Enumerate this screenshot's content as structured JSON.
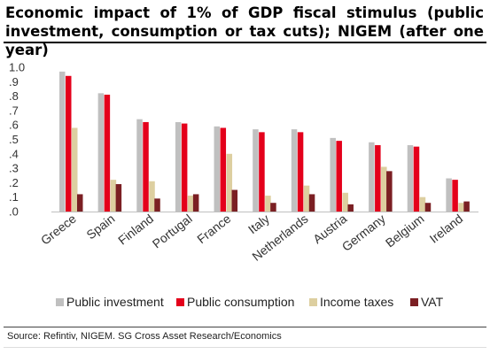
{
  "title": "Economic impact of 1% of GDP fiscal stimulus (public investment, consumption or tax cuts); NIGEM (after one year)",
  "source": "Source: Refintiv, NIGEM. SG Cross Asset Research/Economics",
  "colors": {
    "public_investment": "#c0c0c0",
    "public_consumption": "#e4001b",
    "income_taxes": "#ddcfa0",
    "vat": "#7b1f23"
  },
  "chart_data": {
    "type": "bar",
    "categories": [
      "Greece",
      "Spain",
      "Finland",
      "Portugal",
      "France",
      "Italy",
      "Netherlands",
      "Austria",
      "Germany",
      "Belgium",
      "Ireland"
    ],
    "series": [
      {
        "name": "Public investment",
        "color": "#c0c0c0",
        "values": [
          0.97,
          0.82,
          0.64,
          0.62,
          0.59,
          0.57,
          0.57,
          0.51,
          0.48,
          0.46,
          0.23
        ]
      },
      {
        "name": "Public consumption",
        "color": "#e4001b",
        "values": [
          0.94,
          0.81,
          0.62,
          0.61,
          0.58,
          0.55,
          0.55,
          0.49,
          0.46,
          0.45,
          0.22
        ]
      },
      {
        "name": "Income taxes",
        "color": "#ddcfa0",
        "values": [
          0.58,
          0.22,
          0.21,
          0.11,
          0.4,
          0.11,
          0.18,
          0.13,
          0.31,
          0.1,
          0.06
        ]
      },
      {
        "name": "VAT",
        "color": "#7b1f23",
        "values": [
          0.12,
          0.19,
          0.09,
          0.12,
          0.15,
          0.06,
          0.12,
          0.05,
          0.28,
          0.06,
          0.07
        ]
      }
    ],
    "yticks": [
      ".0",
      ".1",
      ".2",
      ".3",
      ".4",
      ".5",
      ".6",
      ".7",
      ".8",
      ".9",
      "1.0"
    ],
    "ylim": [
      0,
      1.0
    ],
    "grid": false,
    "legend": "bottom"
  }
}
